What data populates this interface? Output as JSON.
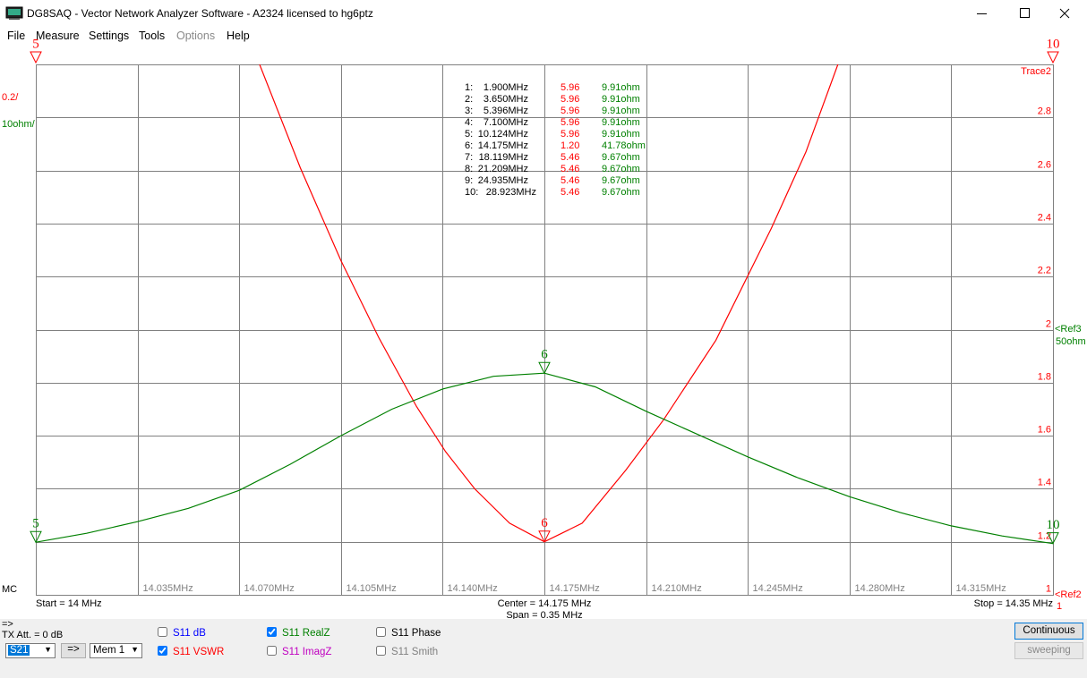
{
  "window": {
    "title": "DG8SAQ  -  Vector Network Analyzer Software  - A2324 licensed to hg6ptz"
  },
  "menu": [
    "File",
    "Measure",
    "Settings",
    "Tools",
    "Options",
    "Help"
  ],
  "chart_data": {
    "type": "line",
    "xlim": [
      14,
      14.35
    ],
    "xticks": [
      {
        "value": 14.035,
        "label": "14.035MHz"
      },
      {
        "value": 14.07,
        "label": "14.070MHz"
      },
      {
        "value": 14.105,
        "label": "14.105MHz"
      },
      {
        "value": 14.14,
        "label": "14.140MHz"
      },
      {
        "value": 14.175,
        "label": "14.175MHz"
      },
      {
        "value": 14.21,
        "label": "14.210MHz"
      },
      {
        "value": 14.245,
        "label": "14.245MHz"
      },
      {
        "value": 14.28,
        "label": "14.280MHz"
      },
      {
        "value": 14.315,
        "label": "14.315MHz"
      }
    ],
    "ylim": [
      1,
      3
    ],
    "yticks": [
      1,
      1.2,
      1.4,
      1.6,
      1.8,
      2,
      2.2,
      2.4,
      2.6,
      2.8
    ],
    "y2lim": [
      0,
      100
    ],
    "grid": true,
    "y_scale_label": "0.2/",
    "y2_scale_label": "10ohm/",
    "trace_label": "Trace2",
    "ref3": [
      "<Ref3",
      "50ohm"
    ],
    "ref2": [
      "<Ref2",
      "1"
    ],
    "mode_label": "MC",
    "start": "Start = 14 MHz",
    "center": "Center = 14.175 MHz",
    "span": "Span = 0.35 MHz",
    "stop": "Stop = 14.35 MHz",
    "series": [
      {
        "name": "S11 VSWR",
        "color": "#ff0000",
        "x": [
          14.077,
          14.091,
          14.105,
          14.118,
          14.131,
          14.141,
          14.151,
          14.163,
          14.175,
          14.188,
          14.203,
          14.216,
          14.234,
          14.253,
          14.265,
          14.276
        ],
        "values": [
          3.0,
          2.61,
          2.26,
          1.97,
          1.71,
          1.54,
          1.4,
          1.27,
          1.2,
          1.27,
          1.47,
          1.66,
          1.96,
          2.38,
          2.67,
          3.0
        ]
      },
      {
        "name": "S11 RealZ",
        "color": "#008000",
        "axis": "y2",
        "x": [
          14,
          14.0175,
          14.035,
          14.0525,
          14.07,
          14.0875,
          14.105,
          14.1225,
          14.14,
          14.1575,
          14.175,
          14.1925,
          14.21,
          14.2275,
          14.245,
          14.2625,
          14.28,
          14.2975,
          14.315,
          14.3325,
          14.35
        ],
        "values": [
          9.91,
          11.6,
          13.8,
          16.3,
          19.7,
          24.6,
          30,
          35,
          38.8,
          41.2,
          41.78,
          39.2,
          34.6,
          30.3,
          26,
          22,
          18.5,
          15.5,
          13,
          11.1,
          9.67
        ]
      }
    ],
    "plot_markers": {
      "left": "5",
      "center": "6",
      "right": "10"
    }
  },
  "marker_table": [
    [
      "1:",
      "1.900MHz",
      "5.96",
      "9.91ohm"
    ],
    [
      "2:",
      "3.650MHz",
      "5.96",
      "9.91ohm"
    ],
    [
      "3:",
      "5.396MHz",
      "5.96",
      "9.91ohm"
    ],
    [
      "4:",
      "7.100MHz",
      "5.96",
      "9.91ohm"
    ],
    [
      "5:",
      "10.124MHz",
      "5.96",
      "9.91ohm"
    ],
    [
      "6:",
      "14.175MHz",
      "1.20",
      "41.78ohm"
    ],
    [
      "7:",
      "18.119MHz",
      "5.46",
      "9.67ohm"
    ],
    [
      "8:",
      "21.209MHz",
      "5.46",
      "9.67ohm"
    ],
    [
      "9:",
      "24.935MHz",
      "5.46",
      "9.67ohm"
    ],
    [
      "10:",
      "28.923MHz",
      "5.46",
      "9.67ohm"
    ]
  ],
  "controls": {
    "arrow": "=>",
    "tx_att": "TX Att. = 0 dB",
    "port": "S21",
    "copy": "=>",
    "memory": "Mem 1",
    "checkboxes": [
      {
        "label": "S11  dB",
        "color": "#0000ff",
        "checked": false
      },
      {
        "label": "S11  VSWR",
        "color": "#ff0000",
        "checked": true
      },
      {
        "label": "S11  RealZ",
        "color": "#008000",
        "checked": true
      },
      {
        "label": "S11  ImagZ",
        "color": "#c000c0",
        "checked": false
      },
      {
        "label": "S11  Phase",
        "color": "#000000",
        "checked": false
      },
      {
        "label": "S11  Smith",
        "color": "#808080",
        "checked": false
      }
    ],
    "continuous": "Continuous",
    "sweeping": "sweeping"
  }
}
